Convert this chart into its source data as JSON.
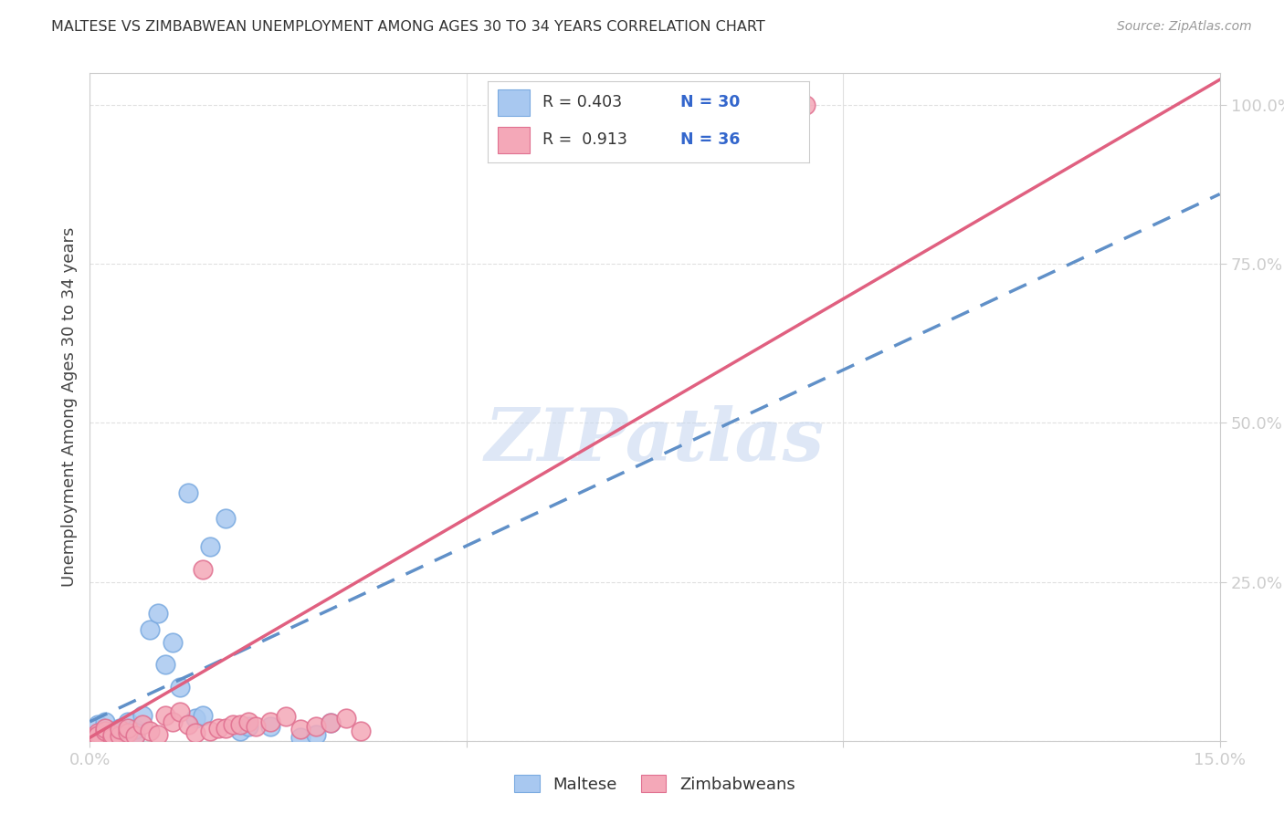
{
  "title": "MALTESE VS ZIMBABWEAN UNEMPLOYMENT AMONG AGES 30 TO 34 YEARS CORRELATION CHART",
  "source": "Source: ZipAtlas.com",
  "ylabel": "Unemployment Among Ages 30 to 34 years",
  "xlim": [
    0,
    0.15
  ],
  "ylim": [
    0,
    1.05
  ],
  "maltese_color": "#a8c8f0",
  "maltese_edge_color": "#7aaae0",
  "zimbabwean_color": "#f4a8b8",
  "zimbabwean_edge_color": "#e07090",
  "maltese_line_color": "#6090c8",
  "maltese_line_style": "--",
  "zimbabwean_line_color": "#e06080",
  "zimbabwean_line_style": "-",
  "legend_r_color": "#333333",
  "legend_n_color": "#3366cc",
  "watermark_color": "#c8d8f0",
  "grid_color": "#e0e0e0",
  "tick_color": "#4a7fc0",
  "axis_color": "#cccccc",
  "background_color": "#ffffff",
  "maltese_x": [
    0.0,
    0.001,
    0.001,
    0.002,
    0.002,
    0.003,
    0.003,
    0.004,
    0.004,
    0.005,
    0.005,
    0.006,
    0.006,
    0.007,
    0.008,
    0.009,
    0.01,
    0.011,
    0.012,
    0.013,
    0.014,
    0.015,
    0.016,
    0.018,
    0.02,
    0.021,
    0.024,
    0.028,
    0.03,
    0.032
  ],
  "maltese_y": [
    0.005,
    0.01,
    0.025,
    0.008,
    0.03,
    0.005,
    0.015,
    0.008,
    0.02,
    0.012,
    0.03,
    0.008,
    0.018,
    0.04,
    0.175,
    0.2,
    0.12,
    0.155,
    0.085,
    0.39,
    0.035,
    0.04,
    0.305,
    0.35,
    0.015,
    0.022,
    0.022,
    0.005,
    0.01,
    0.028
  ],
  "zimbabwean_x": [
    0.0,
    0.001,
    0.001,
    0.002,
    0.002,
    0.003,
    0.003,
    0.004,
    0.004,
    0.005,
    0.005,
    0.006,
    0.007,
    0.008,
    0.009,
    0.01,
    0.011,
    0.012,
    0.013,
    0.014,
    0.015,
    0.016,
    0.017,
    0.018,
    0.019,
    0.02,
    0.021,
    0.022,
    0.024,
    0.026,
    0.028,
    0.03,
    0.032,
    0.034,
    0.036,
    0.095
  ],
  "zimbabwean_y": [
    0.005,
    0.012,
    0.008,
    0.015,
    0.02,
    0.005,
    0.01,
    0.008,
    0.018,
    0.012,
    0.02,
    0.008,
    0.025,
    0.015,
    0.01,
    0.04,
    0.03,
    0.045,
    0.025,
    0.012,
    0.27,
    0.015,
    0.02,
    0.02,
    0.025,
    0.025,
    0.03,
    0.022,
    0.03,
    0.038,
    0.018,
    0.022,
    0.028,
    0.035,
    0.015,
    1.0
  ],
  "maltese_trend_x0": 0.0,
  "maltese_trend_y0": 0.03,
  "maltese_trend_x1": 0.15,
  "maltese_trend_y1": 0.86,
  "zim_trend_x0": 0.0,
  "zim_trend_y0": 0.005,
  "zim_trend_x1": 0.15,
  "zim_trend_y1": 1.04
}
